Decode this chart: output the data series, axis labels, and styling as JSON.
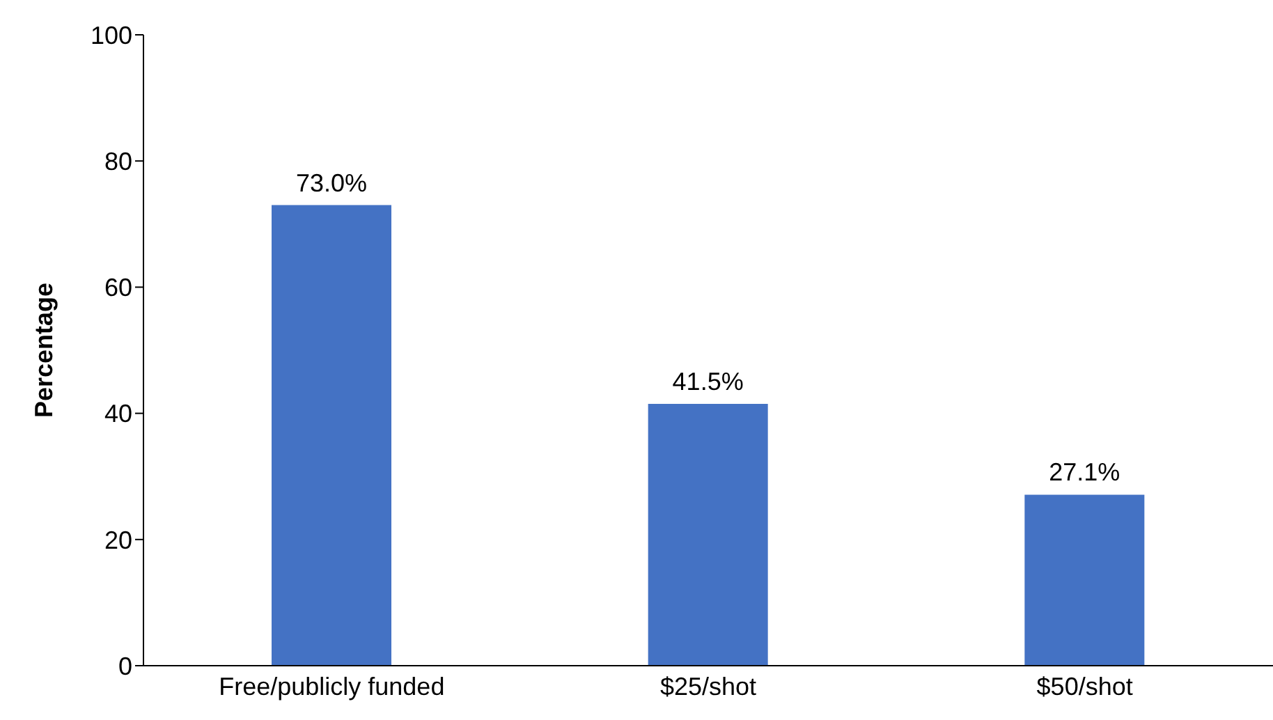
{
  "chart_data": {
    "type": "bar",
    "ylabel": "Percentage",
    "categories": [
      "Free/publicly funded",
      "$25/shot",
      "$50/shot"
    ],
    "values": [
      73.0,
      41.5,
      27.1
    ],
    "value_labels": [
      "73.0%",
      "41.5%",
      "27.1%"
    ],
    "color": "#4472c4",
    "ylim": [
      0,
      100
    ],
    "yticks": [
      0,
      20,
      40,
      60,
      80,
      100
    ],
    "grid": false,
    "legend": false
  }
}
